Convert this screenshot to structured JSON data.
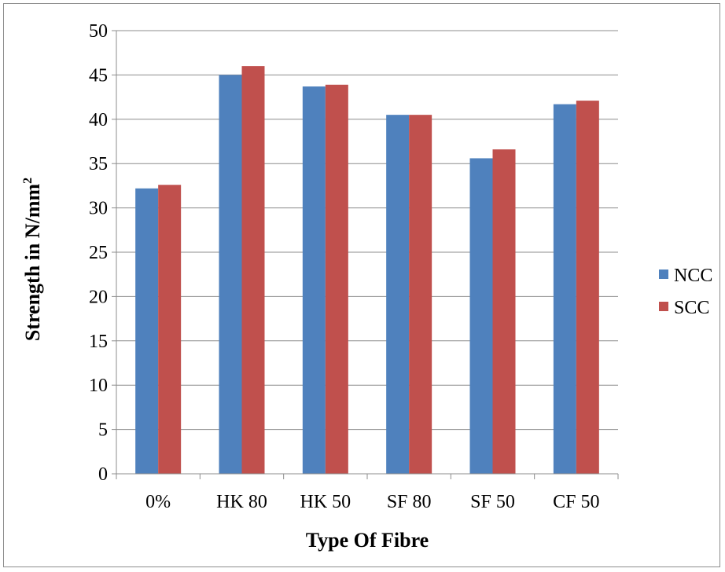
{
  "chart_data": {
    "type": "bar",
    "title": "",
    "xlabel": "Type Of Fibre",
    "ylabel": "Strength in N/mm",
    "ylabel_superscript": "2",
    "categories": [
      "0%",
      "HK 80",
      "HK 50",
      "SF 80",
      "SF 50",
      "CF 50"
    ],
    "series": [
      {
        "name": "NCC",
        "color": "#4f81bd",
        "values": [
          32.2,
          45.0,
          43.7,
          40.5,
          35.6,
          41.7
        ]
      },
      {
        "name": "SCC",
        "color": "#c0504d",
        "values": [
          32.6,
          46.0,
          43.9,
          40.5,
          36.6,
          42.1
        ]
      }
    ],
    "ylim": [
      0,
      50
    ],
    "yticks": [
      0,
      5,
      10,
      15,
      20,
      25,
      30,
      35,
      40,
      45,
      50
    ],
    "grid": true,
    "legend_position": "right"
  }
}
